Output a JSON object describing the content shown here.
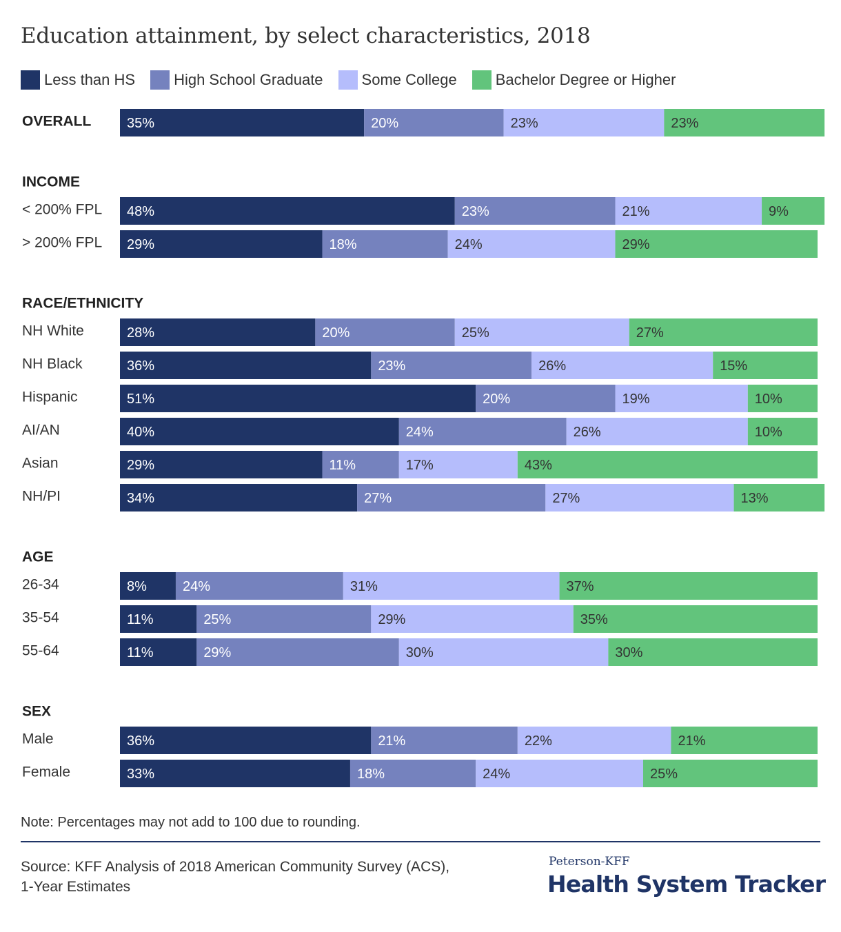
{
  "title": "Education attainment, by select characteristics, 2018",
  "note": "Note: Percentages may not add to 100 due to rounding.",
  "source": "Source: KFF Analysis of 2018 American Community Survey (ACS), 1-Year Estimates",
  "logo": {
    "top": "Peterson-KFF",
    "main": "Health System Tracker"
  },
  "colors": {
    "less_than_hs": "#1f3466",
    "high_school_graduate": "#7582be",
    "some_college": "#b5bdfc",
    "bachelor_or_higher": "#62c47c"
  },
  "chart_data": {
    "type": "bar",
    "orientation": "horizontal",
    "stacked": true,
    "legend_position": "top-left",
    "grid": false,
    "series": [
      {
        "name": "Less than HS",
        "color": "#1f3466"
      },
      {
        "name": "High School Graduate",
        "color": "#7582be"
      },
      {
        "name": "Some College",
        "color": "#b5bdfc"
      },
      {
        "name": "Bachelor Degree or Higher",
        "color": "#62c47c"
      }
    ],
    "groups": [
      {
        "label": "OVERALL",
        "rows": [
          {
            "label": "",
            "values": [
              35,
              20,
              23,
              23
            ]
          }
        ]
      },
      {
        "label": "INCOME",
        "rows": [
          {
            "label": "< 200% FPL",
            "values": [
              48,
              23,
              21,
              9
            ]
          },
          {
            "label": "> 200% FPL",
            "values": [
              29,
              18,
              24,
              29
            ]
          }
        ]
      },
      {
        "label": "RACE/ETHNICITY",
        "rows": [
          {
            "label": "NH White",
            "values": [
              28,
              20,
              25,
              27
            ]
          },
          {
            "label": "NH Black",
            "values": [
              36,
              23,
              26,
              15
            ]
          },
          {
            "label": "Hispanic",
            "values": [
              51,
              20,
              19,
              10
            ]
          },
          {
            "label": "AI/AN",
            "values": [
              40,
              24,
              26,
              10
            ]
          },
          {
            "label": "Asian",
            "values": [
              29,
              11,
              17,
              43
            ]
          },
          {
            "label": "NH/PI",
            "values": [
              34,
              27,
              27,
              13
            ]
          }
        ]
      },
      {
        "label": "AGE",
        "rows": [
          {
            "label": "26-34",
            "values": [
              8,
              24,
              31,
              37
            ]
          },
          {
            "label": "35-54",
            "values": [
              11,
              25,
              29,
              35
            ]
          },
          {
            "label": "55-64",
            "values": [
              11,
              29,
              30,
              30
            ]
          }
        ]
      },
      {
        "label": "SEX",
        "rows": [
          {
            "label": "Male",
            "values": [
              36,
              21,
              22,
              21
            ]
          },
          {
            "label": "Female",
            "values": [
              33,
              18,
              24,
              25
            ]
          }
        ]
      }
    ]
  }
}
